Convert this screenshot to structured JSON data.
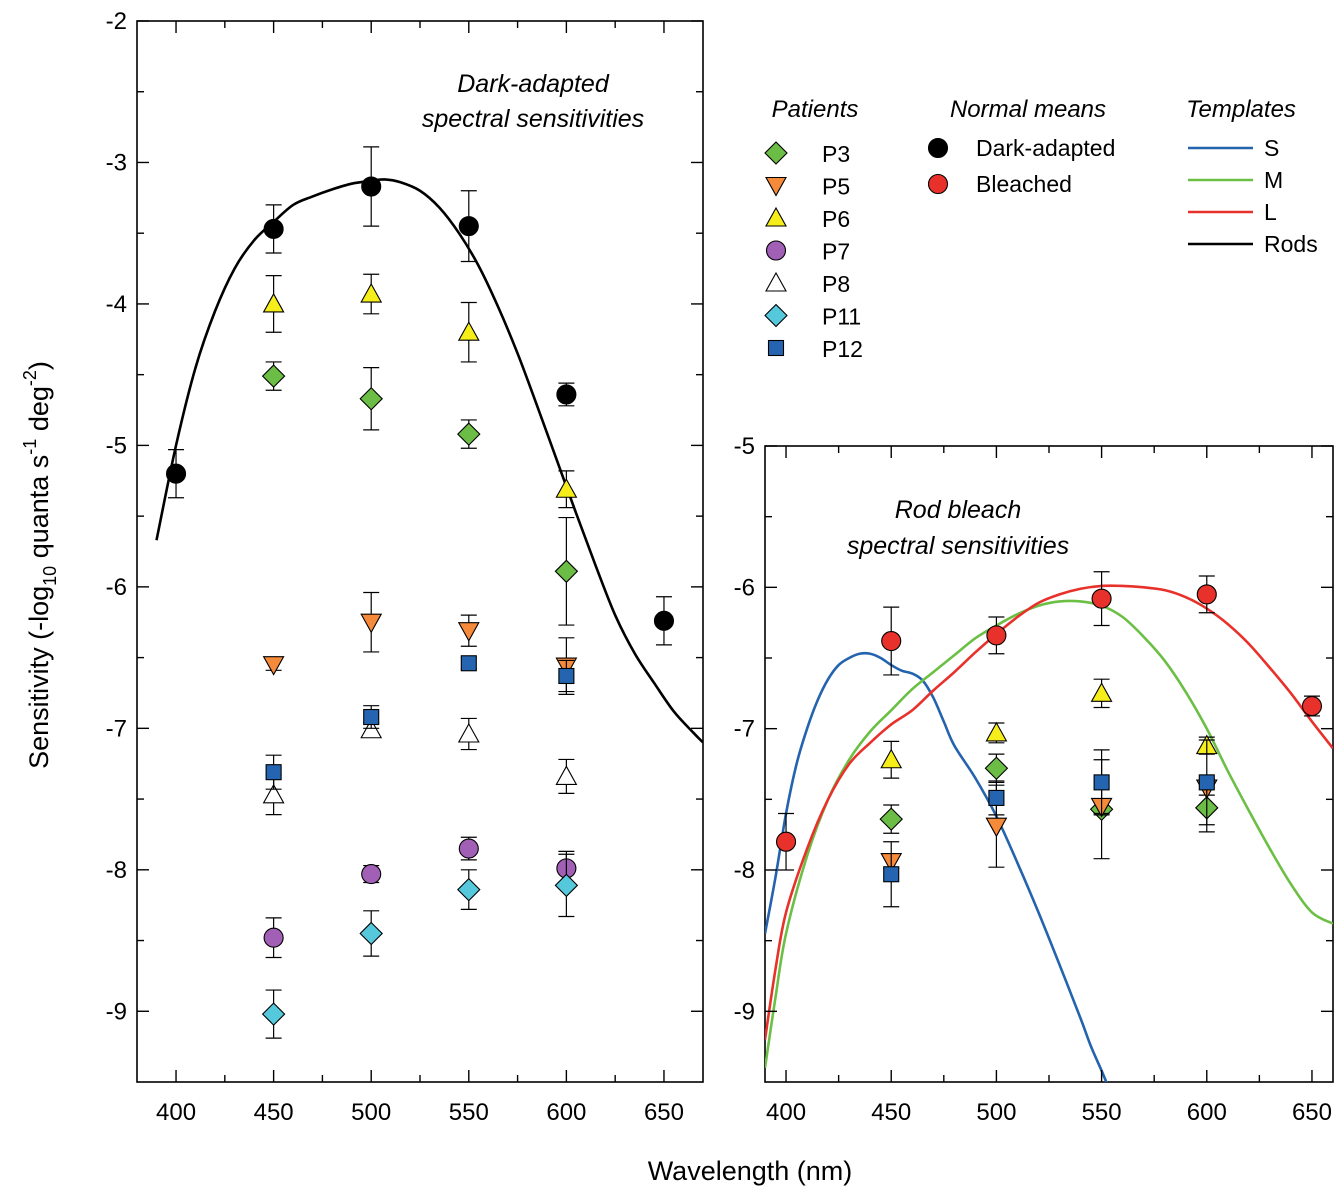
{
  "figure": {
    "ylabel_parts": [
      "Sensitivity (-log",
      "10",
      " quanta s",
      "-1",
      " deg",
      "-2",
      ")"
    ],
    "xlabel": "Wavelength (nm)"
  },
  "legend": {
    "patients_title": "Patients",
    "normal_title": "Normal means",
    "templates_title": "Templates",
    "patients": [
      {
        "name": "P3",
        "marker": "diamond",
        "color": "#6cbd45"
      },
      {
        "name": "P5",
        "marker": "triangle-down",
        "color": "#f58a3b"
      },
      {
        "name": "P6",
        "marker": "triangle-up",
        "color": "#f6ee1a"
      },
      {
        "name": "P7",
        "marker": "circle",
        "color": "#a25fb6"
      },
      {
        "name": "P8",
        "marker": "triangle-up",
        "color": "#ffffff"
      },
      {
        "name": "P11",
        "marker": "diamond",
        "color": "#55c8dc"
      },
      {
        "name": "P12",
        "marker": "square",
        "color": "#2464b0"
      }
    ],
    "normals": [
      {
        "name": "Dark-adapted",
        "marker": "circle",
        "color": "#000000"
      },
      {
        "name": "Bleached",
        "marker": "circle",
        "color": "#e8312b"
      }
    ],
    "templates": [
      {
        "name": "S",
        "color": "#2463ae"
      },
      {
        "name": "M",
        "color": "#6cbf45"
      },
      {
        "name": "L",
        "color": "#e8312b"
      },
      {
        "name": "Rods",
        "color": "#000000"
      }
    ]
  },
  "chart_data": [
    {
      "type": "scatter",
      "annotation": [
        "Dark-adapted",
        "spectral sensitivities"
      ],
      "xlim": [
        380,
        670
      ],
      "ylim": [
        -9.5,
        -2
      ],
      "xticks": [
        400,
        450,
        500,
        550,
        600,
        650
      ],
      "yticks": [
        -9,
        -8,
        -7,
        -6,
        -5,
        -4,
        -3,
        -2
      ],
      "series": [
        {
          "name": "Dark-adapted",
          "marker": "circle",
          "color": "#000000",
          "x": [
            400,
            450,
            500,
            550,
            600,
            650
          ],
          "y": [
            -5.2,
            -3.47,
            -3.17,
            -3.45,
            -4.64,
            -6.24
          ],
          "err": [
            0.17,
            0.17,
            0.28,
            0.25,
            0.08,
            0.17
          ]
        },
        {
          "name": "P3",
          "marker": "diamond",
          "color": "#6cbd45",
          "x": [
            450,
            500,
            550,
            600
          ],
          "y": [
            -4.51,
            -4.67,
            -4.92,
            -5.89
          ],
          "err": [
            0.1,
            0.22,
            0.1,
            0.38
          ]
        },
        {
          "name": "P5",
          "marker": "triangle-down",
          "color": "#f58a3b",
          "x": [
            450,
            500,
            550,
            600
          ],
          "y": [
            -6.55,
            -6.25,
            -6.31,
            -6.56
          ],
          "err": [
            0.04,
            0.21,
            0.11,
            0.2
          ]
        },
        {
          "name": "P6",
          "marker": "triangle-up",
          "color": "#f6ee1a",
          "x": [
            450,
            500,
            550,
            600
          ],
          "y": [
            -4.0,
            -3.93,
            -4.2,
            -5.31
          ],
          "err": [
            0.2,
            0.14,
            0.21,
            0.13
          ]
        },
        {
          "name": "P7",
          "marker": "circle",
          "color": "#a25fb6",
          "x": [
            450,
            500,
            550,
            600
          ],
          "y": [
            -8.48,
            -8.03,
            -7.85,
            -7.99
          ],
          "err": [
            0.14,
            0.06,
            0.08,
            0.12
          ]
        },
        {
          "name": "P8",
          "marker": "triangle-up",
          "color": "#ffffff",
          "x": [
            450,
            500,
            550,
            600
          ],
          "y": [
            -7.47,
            -7.01,
            -7.04,
            -7.34
          ],
          "err": [
            0.14,
            0.05,
            0.11,
            0.12
          ]
        },
        {
          "name": "P11",
          "marker": "diamond",
          "color": "#55c8dc",
          "x": [
            450,
            500,
            550,
            600
          ],
          "y": [
            -9.02,
            -8.45,
            -8.14,
            -8.11
          ],
          "err": [
            0.17,
            0.16,
            0.14,
            0.22
          ]
        },
        {
          "name": "P12",
          "marker": "square",
          "color": "#2464b0",
          "x": [
            450,
            500,
            550,
            600
          ],
          "y": [
            -7.31,
            -6.92,
            -6.54,
            -6.63
          ],
          "err": [
            0.12,
            0.08,
            0.04,
            0.11
          ]
        }
      ],
      "curves": [
        {
          "name": "Rods",
          "color": "#000000",
          "x": [
            390,
            400,
            410,
            420,
            430,
            440,
            450,
            460,
            470,
            480,
            490,
            500,
            507,
            515,
            525,
            535,
            545,
            555,
            565,
            575,
            585,
            595,
            605,
            615,
            625,
            635,
            645,
            655,
            665,
            670
          ],
          "y": [
            -5.67,
            -5.0,
            -4.45,
            -4.05,
            -3.75,
            -3.55,
            -3.42,
            -3.3,
            -3.24,
            -3.19,
            -3.15,
            -3.13,
            -3.12,
            -3.14,
            -3.2,
            -3.32,
            -3.5,
            -3.73,
            -4.02,
            -4.35,
            -4.72,
            -5.1,
            -5.48,
            -5.85,
            -6.2,
            -6.47,
            -6.68,
            -6.88,
            -7.03,
            -7.1
          ]
        }
      ]
    },
    {
      "type": "scatter",
      "annotation": [
        "Rod bleach",
        "spectral sensitivities"
      ],
      "xlim": [
        390,
        660
      ],
      "ylim": [
        -9.5,
        -5
      ],
      "xticks": [
        400,
        450,
        500,
        550,
        600,
        650
      ],
      "yticks": [
        -9,
        -8,
        -7,
        -6,
        -5
      ],
      "series": [
        {
          "name": "Bleached",
          "marker": "circle",
          "color": "#e8312b",
          "x": [
            400,
            450,
            500,
            550,
            600,
            650
          ],
          "y": [
            -7.8,
            -6.38,
            -6.34,
            -6.08,
            -6.05,
            -6.84
          ],
          "err": [
            0.2,
            0.24,
            0.13,
            0.19,
            0.13,
            0.07
          ]
        },
        {
          "name": "P3",
          "marker": "diamond",
          "color": "#6cbd45",
          "x": [
            450,
            500,
            550,
            600
          ],
          "y": [
            -7.64,
            -7.28,
            -7.57,
            -7.56
          ],
          "err": [
            0.1,
            0.1,
            0.35,
            0.17
          ]
        },
        {
          "name": "P5",
          "marker": "triangle-down",
          "color": "#f58a3b",
          "x": [
            450,
            500,
            550,
            600
          ],
          "y": [
            -7.94,
            -7.69,
            -7.55,
            -7.42
          ],
          "err": [
            0.05,
            0.29,
            0.05,
            0.05
          ]
        },
        {
          "name": "P6",
          "marker": "triangle-up",
          "color": "#f6ee1a",
          "x": [
            450,
            500,
            550,
            600
          ],
          "y": [
            -7.22,
            -7.03,
            -6.75,
            -7.12
          ],
          "err": [
            0.13,
            0.07,
            0.1,
            0.06
          ]
        },
        {
          "name": "P12",
          "marker": "square",
          "color": "#2464b0",
          "x": [
            450,
            500,
            550,
            600
          ],
          "y": [
            -8.03,
            -7.49,
            -7.38,
            -7.38
          ],
          "err": [
            0.23,
            0.12,
            0.23,
            0.3
          ]
        }
      ],
      "curves": [
        {
          "name": "S",
          "color": "#2463ae",
          "x": [
            390,
            395,
            400,
            405,
            410,
            415,
            420,
            425,
            430,
            435,
            440,
            445,
            450,
            455,
            460,
            465,
            470,
            475,
            480,
            490,
            500,
            510,
            520,
            530,
            540,
            545,
            550,
            555
          ],
          "y": [
            -8.45,
            -8.05,
            -7.6,
            -7.25,
            -7.0,
            -6.8,
            -6.65,
            -6.55,
            -6.5,
            -6.47,
            -6.47,
            -6.5,
            -6.55,
            -6.59,
            -6.61,
            -6.66,
            -6.78,
            -6.95,
            -7.12,
            -7.35,
            -7.62,
            -7.95,
            -8.3,
            -8.67,
            -9.05,
            -9.25,
            -9.42,
            -9.6
          ]
        },
        {
          "name": "M",
          "color": "#6cbf45",
          "x": [
            390,
            395,
            400,
            410,
            420,
            430,
            440,
            450,
            460,
            470,
            480,
            490,
            500,
            510,
            520,
            530,
            540,
            550,
            560,
            570,
            580,
            590,
            600,
            610,
            620,
            630,
            640,
            650,
            660
          ],
          "y": [
            -9.4,
            -8.9,
            -8.45,
            -7.9,
            -7.5,
            -7.22,
            -7.02,
            -6.87,
            -6.72,
            -6.6,
            -6.48,
            -6.36,
            -6.27,
            -6.19,
            -6.13,
            -6.1,
            -6.1,
            -6.13,
            -6.21,
            -6.35,
            -6.52,
            -6.74,
            -7.0,
            -7.3,
            -7.58,
            -7.85,
            -8.1,
            -8.3,
            -8.38
          ]
        },
        {
          "name": "L",
          "color": "#e8312b",
          "x": [
            390,
            395,
            400,
            410,
            420,
            430,
            440,
            450,
            460,
            470,
            480,
            490,
            500,
            510,
            520,
            530,
            540,
            550,
            560,
            570,
            580,
            590,
            600,
            610,
            620,
            630,
            640,
            650,
            660
          ],
          "y": [
            -9.2,
            -8.7,
            -8.3,
            -7.85,
            -7.5,
            -7.25,
            -7.1,
            -6.97,
            -6.87,
            -6.73,
            -6.6,
            -6.46,
            -6.33,
            -6.21,
            -6.11,
            -6.05,
            -6.01,
            -5.99,
            -5.99,
            -6.0,
            -6.02,
            -6.07,
            -6.15,
            -6.26,
            -6.4,
            -6.57,
            -6.75,
            -6.95,
            -7.14
          ]
        }
      ]
    }
  ]
}
